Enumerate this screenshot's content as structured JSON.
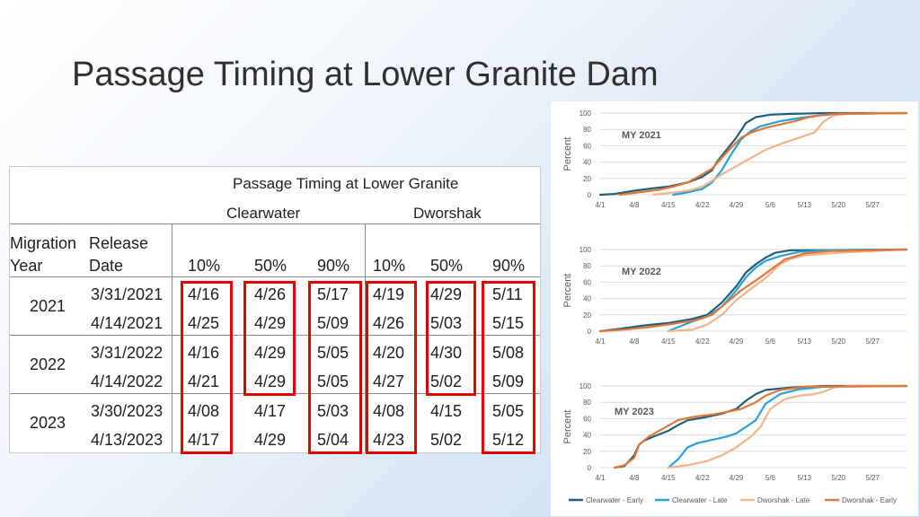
{
  "slide": {
    "title": "Passage Timing at Lower Granite Dam"
  },
  "table": {
    "title": "Passage Timing at Lower Granite",
    "group_clearwater": "Clearwater",
    "group_dworshak": "Dworshak",
    "col_migration": "Migration",
    "col_year": "Year",
    "col_release": "Release",
    "col_date": "Date",
    "percentiles": [
      "10%",
      "50%",
      "90%",
      "10%",
      "50%",
      "90%"
    ],
    "years": [
      "2021",
      "2022",
      "2023"
    ],
    "rows": [
      {
        "date": "3/31/2021",
        "values": [
          "4/16",
          "4/26",
          "5/17",
          "4/19",
          "4/29",
          "5/11"
        ]
      },
      {
        "date": "4/14/2021",
        "values": [
          "4/25",
          "4/29",
          "5/09",
          "4/26",
          "5/03",
          "5/15"
        ]
      },
      {
        "date": "3/31/2022",
        "values": [
          "4/16",
          "4/29",
          "5/05",
          "4/20",
          "4/30",
          "5/08"
        ]
      },
      {
        "date": "4/14/2022",
        "values": [
          "4/21",
          "4/29",
          "5/05",
          "4/27",
          "5/02",
          "5/09"
        ]
      },
      {
        "date": "3/30/2023",
        "values": [
          "4/08",
          "4/17",
          "5/03",
          "4/08",
          "4/15",
          "5/05"
        ]
      },
      {
        "date": "4/13/2023",
        "values": [
          "4/17",
          "4/29",
          "5/04",
          "4/23",
          "5/02",
          "5/12"
        ]
      }
    ],
    "highlight_color": "#e00000"
  },
  "chart_data": [
    {
      "type": "line",
      "title": "MY 2021",
      "ylabel": "Percent",
      "ylim": [
        0,
        100
      ],
      "yticks": [
        "0",
        "20",
        "40",
        "60",
        "80",
        "100"
      ],
      "x_ticks": [
        "4/1",
        "4/8",
        "4/15",
        "4/22",
        "4/29",
        "5/6",
        "5/13",
        "5/20",
        "5/27"
      ],
      "grid": true,
      "series": [
        {
          "color": "#1f5f7a",
          "points": [
            [
              "4/1",
              0
            ],
            [
              "4/4",
              1
            ],
            [
              "4/8",
              5
            ],
            [
              "4/12",
              8
            ],
            [
              "4/15",
              10
            ],
            [
              "4/19",
              15
            ],
            [
              "4/22",
              22
            ],
            [
              "4/24",
              30
            ],
            [
              "4/25",
              40
            ],
            [
              "4/27",
              55
            ],
            [
              "4/29",
              70
            ],
            [
              "5/1",
              88
            ],
            [
              "5/3",
              95
            ],
            [
              "5/6",
              98
            ],
            [
              "5/10",
              99
            ],
            [
              "5/17",
              100
            ],
            [
              "6/3",
              100
            ]
          ]
        },
        {
          "color": "#2aa1d4",
          "points": [
            [
              "4/16",
              0
            ],
            [
              "4/19",
              3
            ],
            [
              "4/22",
              7
            ],
            [
              "4/24",
              15
            ],
            [
              "4/26",
              30
            ],
            [
              "4/28",
              50
            ],
            [
              "4/30",
              68
            ],
            [
              "5/2",
              78
            ],
            [
              "5/4",
              84
            ],
            [
              "5/8",
              90
            ],
            [
              "5/12",
              94
            ],
            [
              "5/16",
              97
            ],
            [
              "5/20",
              99
            ],
            [
              "6/3",
              100
            ]
          ]
        },
        {
          "color": "#f2b48c",
          "points": [
            [
              "4/12",
              0
            ],
            [
              "4/15",
              2
            ],
            [
              "4/19",
              5
            ],
            [
              "4/22",
              10
            ],
            [
              "4/24",
              17
            ],
            [
              "4/26",
              25
            ],
            [
              "4/29",
              35
            ],
            [
              "5/2",
              45
            ],
            [
              "5/5",
              55
            ],
            [
              "5/8",
              62
            ],
            [
              "5/12",
              70
            ],
            [
              "5/15",
              76
            ],
            [
              "5/17",
              90
            ],
            [
              "5/19",
              97
            ],
            [
              "5/22",
              99
            ],
            [
              "6/3",
              100
            ]
          ]
        },
        {
          "color": "#e07838",
          "points": [
            [
              "4/5",
              0
            ],
            [
              "4/9",
              3
            ],
            [
              "4/13",
              6
            ],
            [
              "4/16",
              10
            ],
            [
              "4/19",
              15
            ],
            [
              "4/22",
              25
            ],
            [
              "4/24",
              32
            ],
            [
              "4/26",
              45
            ],
            [
              "4/28",
              58
            ],
            [
              "4/30",
              70
            ],
            [
              "5/2",
              76
            ],
            [
              "5/5",
              82
            ],
            [
              "5/8",
              86
            ],
            [
              "5/11",
              90
            ],
            [
              "5/14",
              95
            ],
            [
              "5/17",
              98
            ],
            [
              "5/20",
              99
            ],
            [
              "6/3",
              100
            ]
          ]
        }
      ]
    },
    {
      "type": "line",
      "title": "MY 2022",
      "ylabel": "Percent",
      "ylim": [
        0,
        100
      ],
      "yticks": [
        "0",
        "20",
        "40",
        "60",
        "80",
        "100"
      ],
      "x_ticks": [
        "4/1",
        "4/8",
        "4/15",
        "4/22",
        "4/29",
        "5/6",
        "5/13",
        "5/20",
        "5/27"
      ],
      "grid": true,
      "series": [
        {
          "color": "#1f5f7a",
          "points": [
            [
              "4/1",
              0
            ],
            [
              "4/5",
              3
            ],
            [
              "4/10",
              7
            ],
            [
              "4/15",
              10
            ],
            [
              "4/20",
              15
            ],
            [
              "4/23",
              20
            ],
            [
              "4/26",
              35
            ],
            [
              "4/29",
              55
            ],
            [
              "5/1",
              72
            ],
            [
              "5/3",
              82
            ],
            [
              "5/5",
              90
            ],
            [
              "5/7",
              96
            ],
            [
              "5/10",
              99
            ],
            [
              "6/3",
              100
            ]
          ]
        },
        {
          "color": "#2aa1d4",
          "points": [
            [
              "4/15",
              0
            ],
            [
              "4/17",
              5
            ],
            [
              "4/20",
              12
            ],
            [
              "4/23",
              18
            ],
            [
              "4/26",
              30
            ],
            [
              "4/29",
              50
            ],
            [
              "5/1",
              66
            ],
            [
              "5/3",
              78
            ],
            [
              "5/5",
              86
            ],
            [
              "5/8",
              92
            ],
            [
              "5/12",
              97
            ],
            [
              "5/16",
              99
            ],
            [
              "6/3",
              100
            ]
          ]
        },
        {
          "color": "#f2b48c",
          "points": [
            [
              "4/15",
              0
            ],
            [
              "4/20",
              2
            ],
            [
              "4/23",
              8
            ],
            [
              "4/26",
              20
            ],
            [
              "4/29",
              38
            ],
            [
              "5/2",
              52
            ],
            [
              "5/5",
              65
            ],
            [
              "5/8",
              82
            ],
            [
              "5/10",
              88
            ],
            [
              "5/13",
              93
            ],
            [
              "5/20",
              96
            ],
            [
              "5/27",
              98
            ],
            [
              "6/3",
              100
            ]
          ]
        },
        {
          "color": "#e07838",
          "points": [
            [
              "4/1",
              0
            ],
            [
              "4/6",
              2
            ],
            [
              "4/11",
              5
            ],
            [
              "4/16",
              9
            ],
            [
              "4/21",
              14
            ],
            [
              "4/24",
              20
            ],
            [
              "4/27",
              35
            ],
            [
              "4/30",
              50
            ],
            [
              "5/3",
              62
            ],
            [
              "5/6",
              75
            ],
            [
              "5/9",
              88
            ],
            [
              "5/13",
              95
            ],
            [
              "5/18",
              98
            ],
            [
              "6/3",
              100
            ]
          ]
        }
      ]
    },
    {
      "type": "line",
      "title": "MY 2023",
      "ylabel": "Percent",
      "ylim": [
        0,
        100
      ],
      "yticks": [
        "0",
        "20",
        "40",
        "60",
        "80",
        "100"
      ],
      "x_ticks": [
        "4/1",
        "4/8",
        "4/15",
        "4/22",
        "4/29",
        "5/6",
        "5/13",
        "5/20",
        "5/27"
      ],
      "grid": true,
      "legend": [
        "Clearwater - Early",
        "Clearwater - Late",
        "Dworshak - Late",
        "Dworshak - Early"
      ],
      "legend_position": "bottom",
      "series": [
        {
          "name": "Clearwater - Early",
          "color": "#1f5f7a",
          "points": [
            [
              "4/4",
              0
            ],
            [
              "4/6",
              2
            ],
            [
              "4/8",
              15
            ],
            [
              "4/9",
              28
            ],
            [
              "4/10",
              33
            ],
            [
              "4/12",
              38
            ],
            [
              "4/15",
              45
            ],
            [
              "4/17",
              52
            ],
            [
              "4/19",
              58
            ],
            [
              "4/22",
              61
            ],
            [
              "4/26",
              66
            ],
            [
              "4/29",
              72
            ],
            [
              "5/1",
              82
            ],
            [
              "5/3",
              90
            ],
            [
              "5/5",
              95
            ],
            [
              "5/10",
              98
            ],
            [
              "5/17",
              100
            ],
            [
              "6/3",
              100
            ]
          ]
        },
        {
          "name": "Clearwater - Late",
          "color": "#2aa1d4",
          "points": [
            [
              "4/15",
              0
            ],
            [
              "4/17",
              10
            ],
            [
              "4/19",
              25
            ],
            [
              "4/21",
              30
            ],
            [
              "4/24",
              34
            ],
            [
              "4/27",
              38
            ],
            [
              "4/29",
              42
            ],
            [
              "5/1",
              50
            ],
            [
              "5/3",
              58
            ],
            [
              "5/5",
              78
            ],
            [
              "5/8",
              90
            ],
            [
              "5/12",
              96
            ],
            [
              "5/17",
              99
            ],
            [
              "6/3",
              100
            ]
          ]
        },
        {
          "name": "Dworshak - Late",
          "color": "#f2b48c",
          "points": [
            [
              "4/15",
              0
            ],
            [
              "4/19",
              3
            ],
            [
              "4/23",
              8
            ],
            [
              "4/26",
              15
            ],
            [
              "4/29",
              25
            ],
            [
              "5/2",
              38
            ],
            [
              "5/4",
              50
            ],
            [
              "5/6",
              72
            ],
            [
              "5/9",
              84
            ],
            [
              "5/12",
              88
            ],
            [
              "5/15",
              90
            ],
            [
              "5/17",
              93
            ],
            [
              "5/19",
              98
            ],
            [
              "5/22",
              100
            ],
            [
              "6/3",
              100
            ]
          ]
        },
        {
          "name": "Dworshak - Early",
          "color": "#e07838",
          "points": [
            [
              "4/4",
              0
            ],
            [
              "4/6",
              3
            ],
            [
              "4/8",
              12
            ],
            [
              "4/9",
              28
            ],
            [
              "4/11",
              38
            ],
            [
              "4/14",
              48
            ],
            [
              "4/17",
              58
            ],
            [
              "4/20",
              62
            ],
            [
              "4/24",
              65
            ],
            [
              "4/27",
              68
            ],
            [
              "4/30",
              72
            ],
            [
              "5/3",
              80
            ],
            [
              "5/5",
              88
            ],
            [
              "5/8",
              95
            ],
            [
              "5/13",
              99
            ],
            [
              "6/3",
              100
            ]
          ]
        }
      ]
    }
  ]
}
